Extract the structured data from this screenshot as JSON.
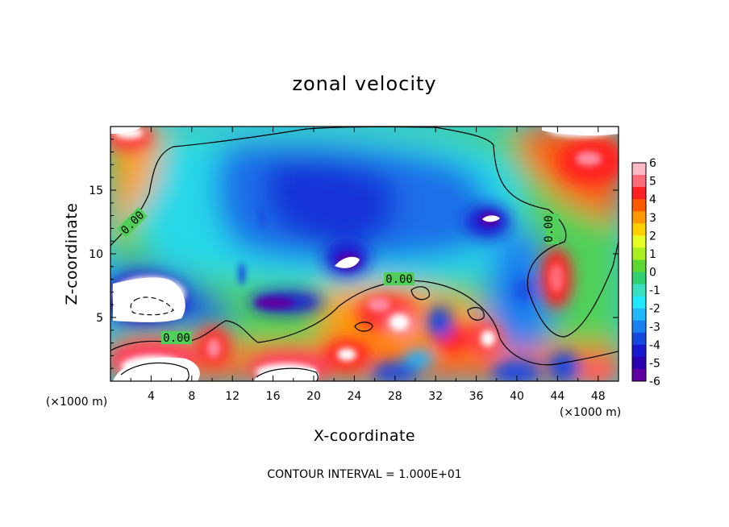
{
  "chart_data": {
    "type": "heatmap",
    "title": "zonal velocity",
    "xlabel": "X-coordinate",
    "ylabel": "Z-coordinate",
    "x_unit": "(×1000 m)",
    "y_unit": "(×1000 m)",
    "xlim": [
      0,
      50
    ],
    "ylim": [
      0,
      20
    ],
    "x_ticks": [
      4,
      8,
      12,
      16,
      20,
      24,
      28,
      32,
      36,
      40,
      44,
      48
    ],
    "y_ticks": [
      5,
      10,
      15
    ],
    "colorbar": {
      "ticks": [
        6,
        5,
        4,
        3,
        2,
        1,
        0,
        -1,
        -2,
        -3,
        -4,
        -5,
        -6
      ],
      "colors": [
        "#ffb8c8",
        "#ff6a78",
        "#ff2020",
        "#ff5a00",
        "#ff9800",
        "#ffd000",
        "#e6ff20",
        "#a8f020",
        "#5cd830",
        "#30d070",
        "#38e0c0",
        "#20e8ff",
        "#20b8ff",
        "#1880f0",
        "#1448e0",
        "#1818d0",
        "#2a00b0",
        "#6000a0"
      ]
    },
    "contour_labels": [
      "0.00",
      "0.00",
      "0.00",
      "0.00"
    ],
    "contour_interval_text": "CONTOUR INTERVAL = 1.000E+01",
    "features": [
      {
        "x": 2.5,
        "z": 18.5,
        "value": 5,
        "label": "positive upper-left corner"
      },
      {
        "x": 46,
        "z": 17.5,
        "value": 5.5,
        "label": "positive upper-right"
      },
      {
        "x": 43.5,
        "z": 8,
        "value": 4.5,
        "label": "positive jet right"
      },
      {
        "x": 21,
        "z": 14,
        "value": -5,
        "label": "negative core upper"
      },
      {
        "x": 37,
        "z": 12.5,
        "value": -6,
        "label": "negative core right"
      },
      {
        "x": 23,
        "z": 9.5,
        "value": -6,
        "label": "negative core center"
      },
      {
        "x": 16,
        "z": 6,
        "value": -5.5,
        "label": "negative core low"
      },
      {
        "x": 3,
        "z": 6.5,
        "value": -6,
        "label": "negative core left"
      },
      {
        "x": 5,
        "z": 1,
        "value": 6,
        "label": "positive near-ground left"
      },
      {
        "x": 17,
        "z": 1,
        "value": 6,
        "label": "positive near-ground center"
      },
      {
        "x": 28,
        "z": 5,
        "value": 5.5,
        "label": "positive turbulent center"
      },
      {
        "x": 36,
        "z": 3,
        "value": 5,
        "label": "positive turbulent right"
      }
    ]
  }
}
